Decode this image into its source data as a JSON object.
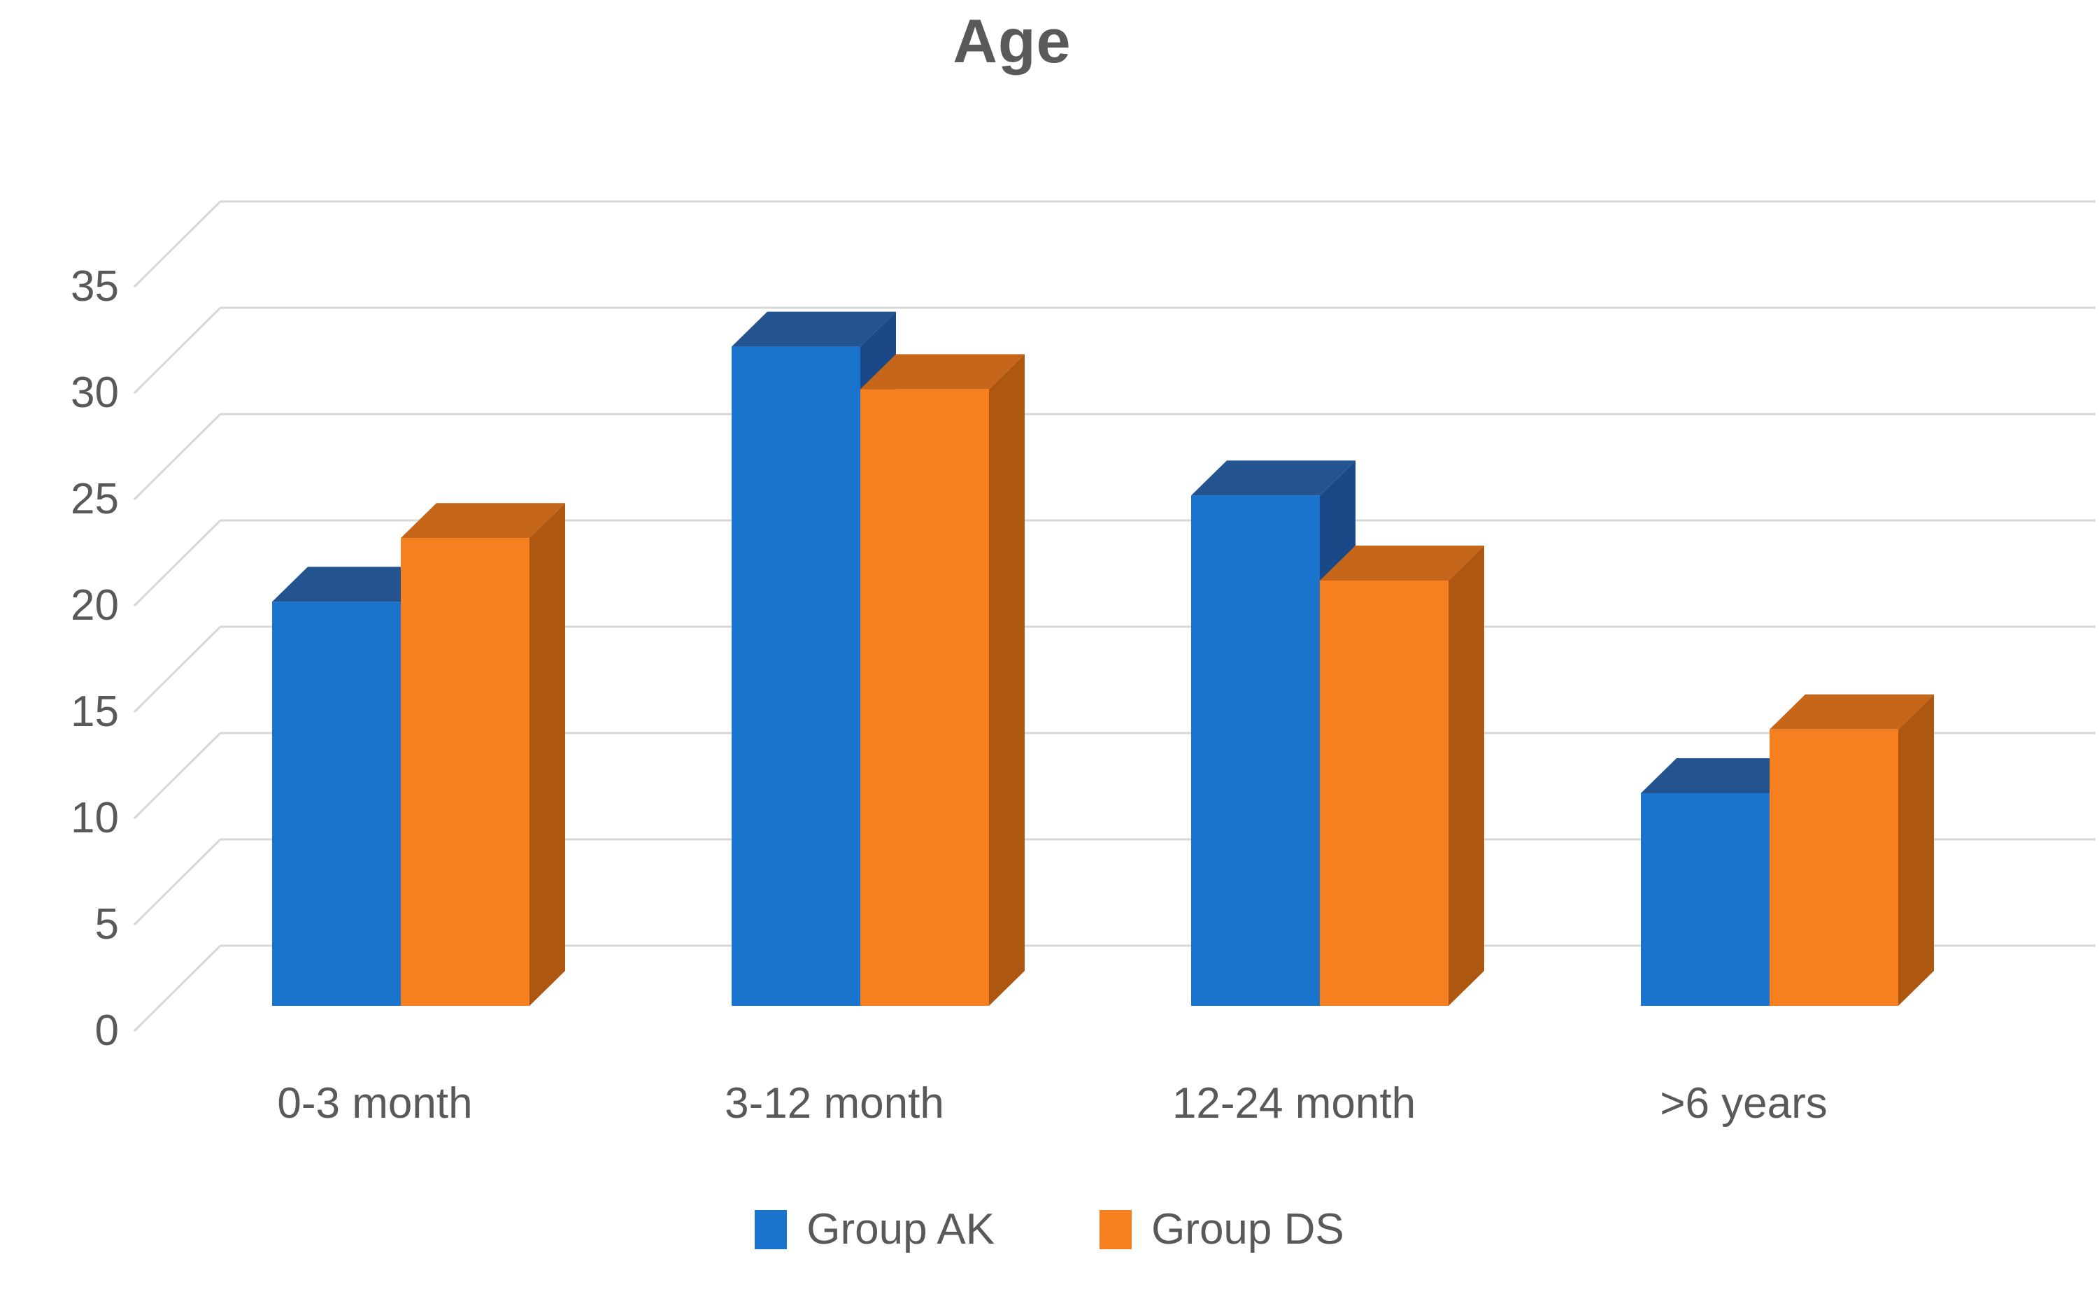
{
  "chart_data": {
    "type": "bar",
    "projection": "3d-clustered-column",
    "title": "Age",
    "categories": [
      "0-3 month",
      "3-12 month",
      "12-24 month",
      ">6 years"
    ],
    "series": [
      {
        "name": "Group AK",
        "values": [
          19,
          31,
          24,
          10
        ]
      },
      {
        "name": "Group DS",
        "values": [
          22,
          29,
          20,
          13
        ]
      }
    ],
    "xlabel": "",
    "ylabel": "",
    "ylim": [
      0,
      35
    ],
    "y_ticks": [
      0,
      5,
      10,
      15,
      20,
      25,
      30,
      35
    ],
    "grid": "horizontal-back-wall",
    "legend_position": "bottom",
    "colors": {
      "ak_front": "#1A73CD",
      "ak_top": "#24548F",
      "ak_side": "#1B4886",
      "ds_front": "#F6801F",
      "ds_top": "#C6661A",
      "ds_side": "#AD5711",
      "gridline": "#D8D8D8",
      "text": "#595959",
      "background": "#FFFFFF"
    }
  }
}
